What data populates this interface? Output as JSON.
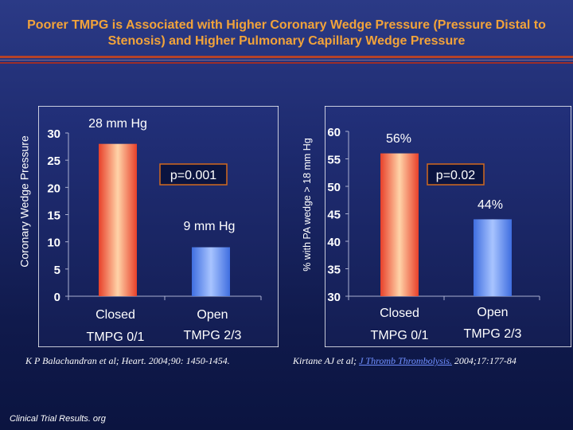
{
  "title": "Poorer TMPG is Associated with Higher Coronary Wedge Pressure (Pressure Distal to Stenosis) and Higher Pulmonary Capillary Wedge Pressure",
  "colors": {
    "panel_bg": "#ffffff",
    "bar_red": "#e8402a",
    "bar_red_light": "#ffd3a8",
    "bar_blue": "#3f6ee0",
    "bar_blue_light": "#a8c4ff",
    "title": "#f2a33a",
    "pvalue_box": "#d2691e"
  },
  "chart_data": [
    {
      "type": "bar",
      "ylabel": "Coronary Wedge Pressure",
      "ylim": [
        0,
        30
      ],
      "yticks": [
        0,
        5,
        10,
        15,
        20,
        25,
        30
      ],
      "categories": [
        "Closed",
        "Open"
      ],
      "values": [
        28,
        9
      ],
      "bar_labels": [
        "28 mm Hg",
        "9 mm Hg"
      ],
      "sublabels": [
        "TMPG 0/1",
        "TMPG 2/3"
      ],
      "pvalue": "p=0.001"
    },
    {
      "type": "bar",
      "ylabel": "% with PA wedge > 18 mm Hg",
      "ylim": [
        30,
        60
      ],
      "yticks": [
        30,
        35,
        40,
        45,
        50,
        55,
        60
      ],
      "categories": [
        "Closed",
        "Open"
      ],
      "values": [
        56,
        44
      ],
      "bar_labels": [
        "56%",
        "44%"
      ],
      "sublabels": [
        "TMPG 0/1",
        "TMPG 2/3"
      ],
      "pvalue": "p=0.02"
    }
  ],
  "citations": {
    "left": "K P Balachandran et al; Heart. 2004;90: 1450-1454.",
    "right_prefix": "Kirtane AJ et al; ",
    "right_link": "J Thromb Thrombolysis.",
    "right_suffix": " 2004;17:177-84"
  },
  "footer": "Clinical Trial Results. org"
}
